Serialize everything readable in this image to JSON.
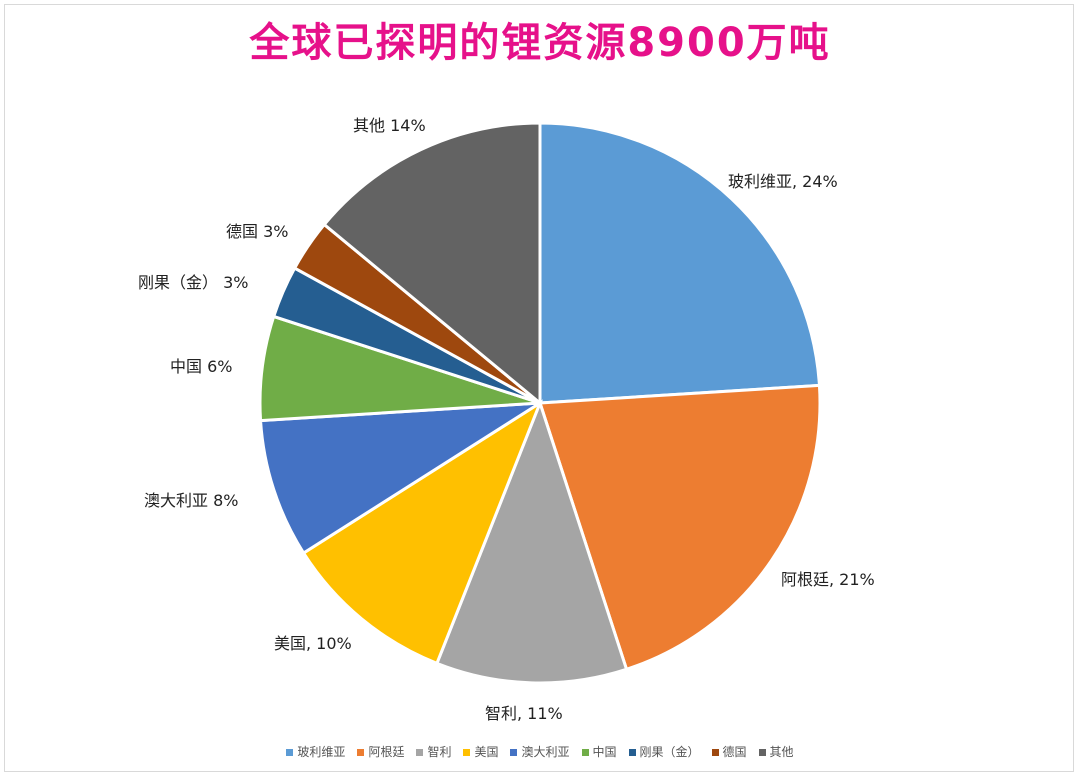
{
  "chart_data": {
    "type": "pie",
    "title": "全球已探明的锂资源8900万吨",
    "slices": [
      {
        "name": "玻利维亚",
        "value": 24,
        "label": "玻利维亚, 24%",
        "color": "#5b9bd5"
      },
      {
        "name": "阿根廷",
        "value": 21,
        "label": "阿根廷, 21%",
        "color": "#ed7d31"
      },
      {
        "name": "智利",
        "value": 11,
        "label": "智利, 11%",
        "color": "#a5a5a5"
      },
      {
        "name": "美国",
        "value": 10,
        "label": "美国, 10%",
        "color": "#ffc000"
      },
      {
        "name": "澳大利亚",
        "value": 8,
        "label": "澳大利亚 8%",
        "color": "#4472c4"
      },
      {
        "name": "中国",
        "value": 6,
        "label": "中国 6%",
        "color": "#70ad47"
      },
      {
        "name": "刚果（金）",
        "value": 3,
        "label": "刚果（金） 3%",
        "color": "#255e91"
      },
      {
        "name": "德国",
        "value": 3,
        "label": "德国 3%",
        "color": "#9e480e"
      },
      {
        "name": "其他",
        "value": 14,
        "label": "其他 14%",
        "color": "#636363"
      }
    ],
    "legend": {
      "position": "bottom",
      "entries": [
        "玻利维亚",
        "阿根廷",
        "智利",
        "美国",
        "澳大利亚",
        "中国",
        "刚果（金）",
        "德国",
        "其他"
      ]
    }
  }
}
